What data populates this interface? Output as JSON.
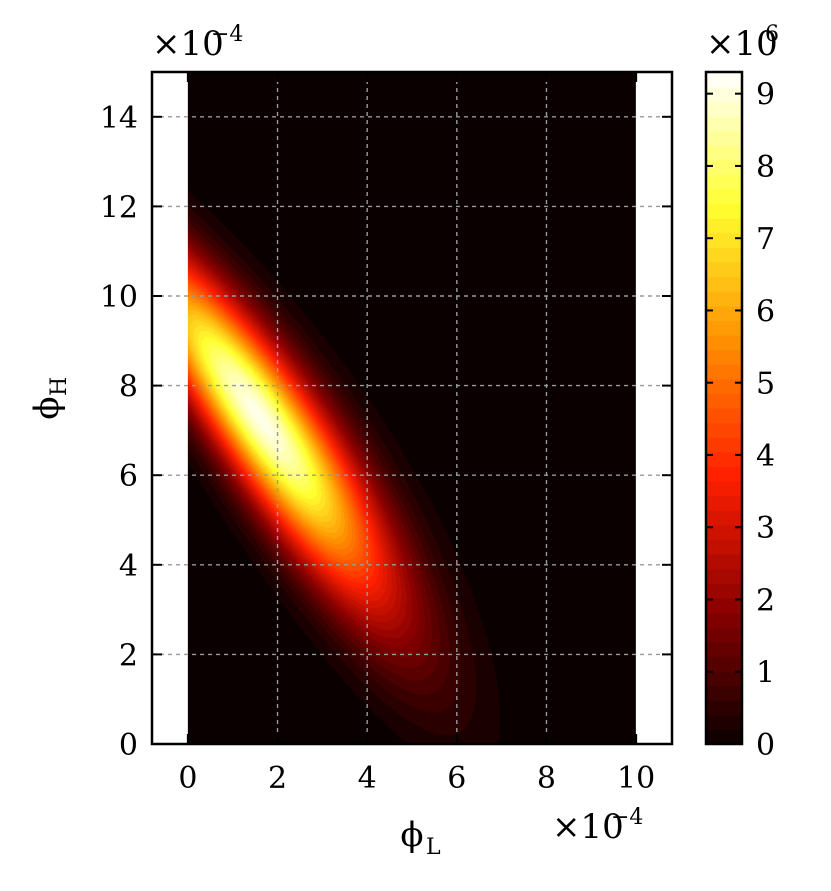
{
  "chart_data": {
    "type": "heatmap",
    "title": "",
    "xlabel": "ϕ",
    "xlabel_sub": "L",
    "ylabel": "ϕ",
    "ylabel_sub": "H",
    "x_multiplier": "×10",
    "x_multiplier_exp": "−4",
    "y_multiplier": "×10",
    "y_multiplier_exp": "−4",
    "xlim": [
      -0.8,
      10.8
    ],
    "ylim": [
      0,
      15
    ],
    "data_x_range": [
      0,
      10
    ],
    "x_ticks": [
      0,
      2,
      4,
      6,
      8,
      10
    ],
    "x_tick_labels": [
      "0",
      "2",
      "4",
      "6",
      "8",
      "10"
    ],
    "y_ticks": [
      0,
      2,
      4,
      6,
      8,
      10,
      12,
      14
    ],
    "y_tick_labels": [
      "0",
      "2",
      "4",
      "6",
      "8",
      "10",
      "12",
      "14"
    ],
    "grid": true,
    "colormap": "hot",
    "colormap_stops": [
      "#0a0000",
      "#8a0000",
      "#ff2000",
      "#ff9000",
      "#ffff30",
      "#ffffff"
    ],
    "feature": {
      "description_values": "ridge of high density along line phi_H + 1.25*phi_L approx 9.3, from (0,9.3) down to (7.5,0); peak near (2, 7.5)",
      "peak": 9.2
    },
    "colorbar": {
      "range": [
        0,
        9.3
      ],
      "ticks": [
        0,
        1,
        2,
        3,
        4,
        5,
        6,
        7,
        8,
        9
      ],
      "tick_labels": [
        "0",
        "1",
        "2",
        "3",
        "4",
        "5",
        "6",
        "7",
        "8",
        "9"
      ],
      "multiplier": "×10",
      "multiplier_exp": "6"
    }
  }
}
